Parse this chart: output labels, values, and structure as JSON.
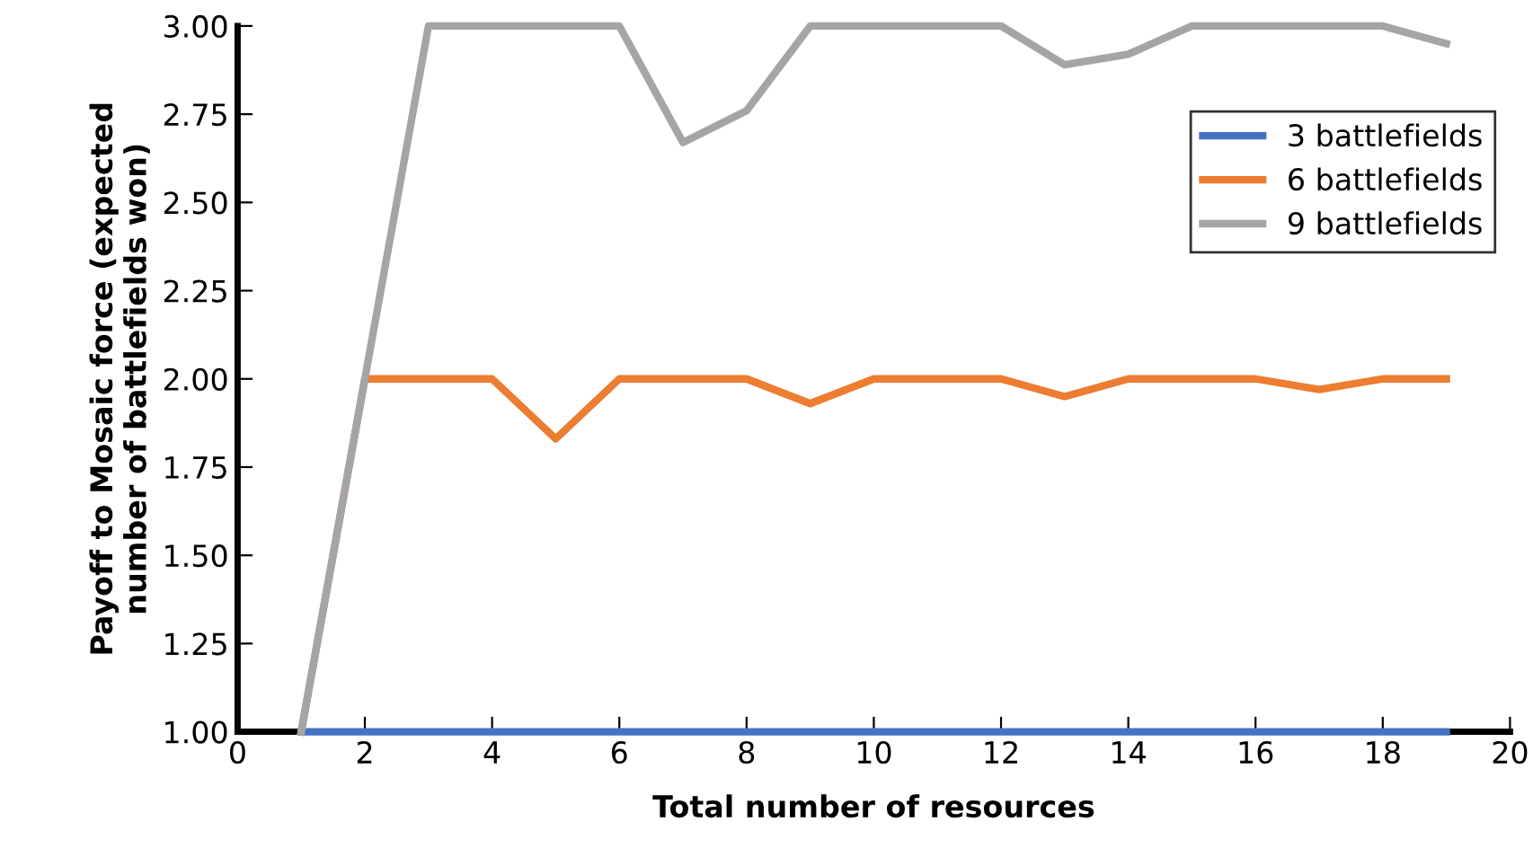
{
  "chart_data": {
    "type": "line",
    "xlabel": "Total number of resources",
    "ylabel": "Payoff to Mosaic force (expected\nnumber of battlefields won)",
    "x": [
      1,
      2,
      3,
      4,
      5,
      6,
      7,
      8,
      9,
      10,
      11,
      12,
      13,
      14,
      15,
      16,
      17,
      18,
      19
    ],
    "series": [
      {
        "name": "3 battlefields",
        "color": "#4472c4",
        "values": [
          1,
          1,
          1,
          1,
          1,
          1,
          1,
          1,
          1,
          1,
          1,
          1,
          1,
          1,
          1,
          1,
          1,
          1,
          1
        ]
      },
      {
        "name": "6 battlefields",
        "color": "#ed7d31",
        "values": [
          1,
          2,
          2,
          2,
          1.83,
          2,
          2,
          2,
          1.93,
          2,
          2,
          2,
          1.95,
          2,
          2,
          2,
          1.97,
          2,
          2
        ]
      },
      {
        "name": "9 battlefields",
        "color": "#a5a5a5",
        "values": [
          1,
          2,
          3,
          3,
          3,
          3,
          2.67,
          2.76,
          3,
          3,
          3,
          3,
          2.89,
          2.92,
          3,
          3,
          3,
          3,
          2.95
        ]
      }
    ],
    "xlim": [
      0,
      20
    ],
    "xticks": [
      0,
      2,
      4,
      6,
      8,
      10,
      12,
      14,
      16,
      18,
      20
    ],
    "ylim": [
      1,
      3
    ],
    "yticks": [
      {
        "value": 1,
        "label": "1.00"
      },
      {
        "value": 1.25,
        "label": "1.25"
      },
      {
        "value": 1.5,
        "label": "1.50"
      },
      {
        "value": 1.75,
        "label": "1.75"
      },
      {
        "value": 2,
        "label": "2.00"
      },
      {
        "value": 2.25,
        "label": "2.25"
      },
      {
        "value": 2.5,
        "label": "2.50"
      },
      {
        "value": 2.75,
        "label": "2.75"
      },
      {
        "value": 3,
        "label": "3.00"
      }
    ],
    "grid": false,
    "legend": "top right",
    "marker": "none",
    "line_style": "solid"
  }
}
